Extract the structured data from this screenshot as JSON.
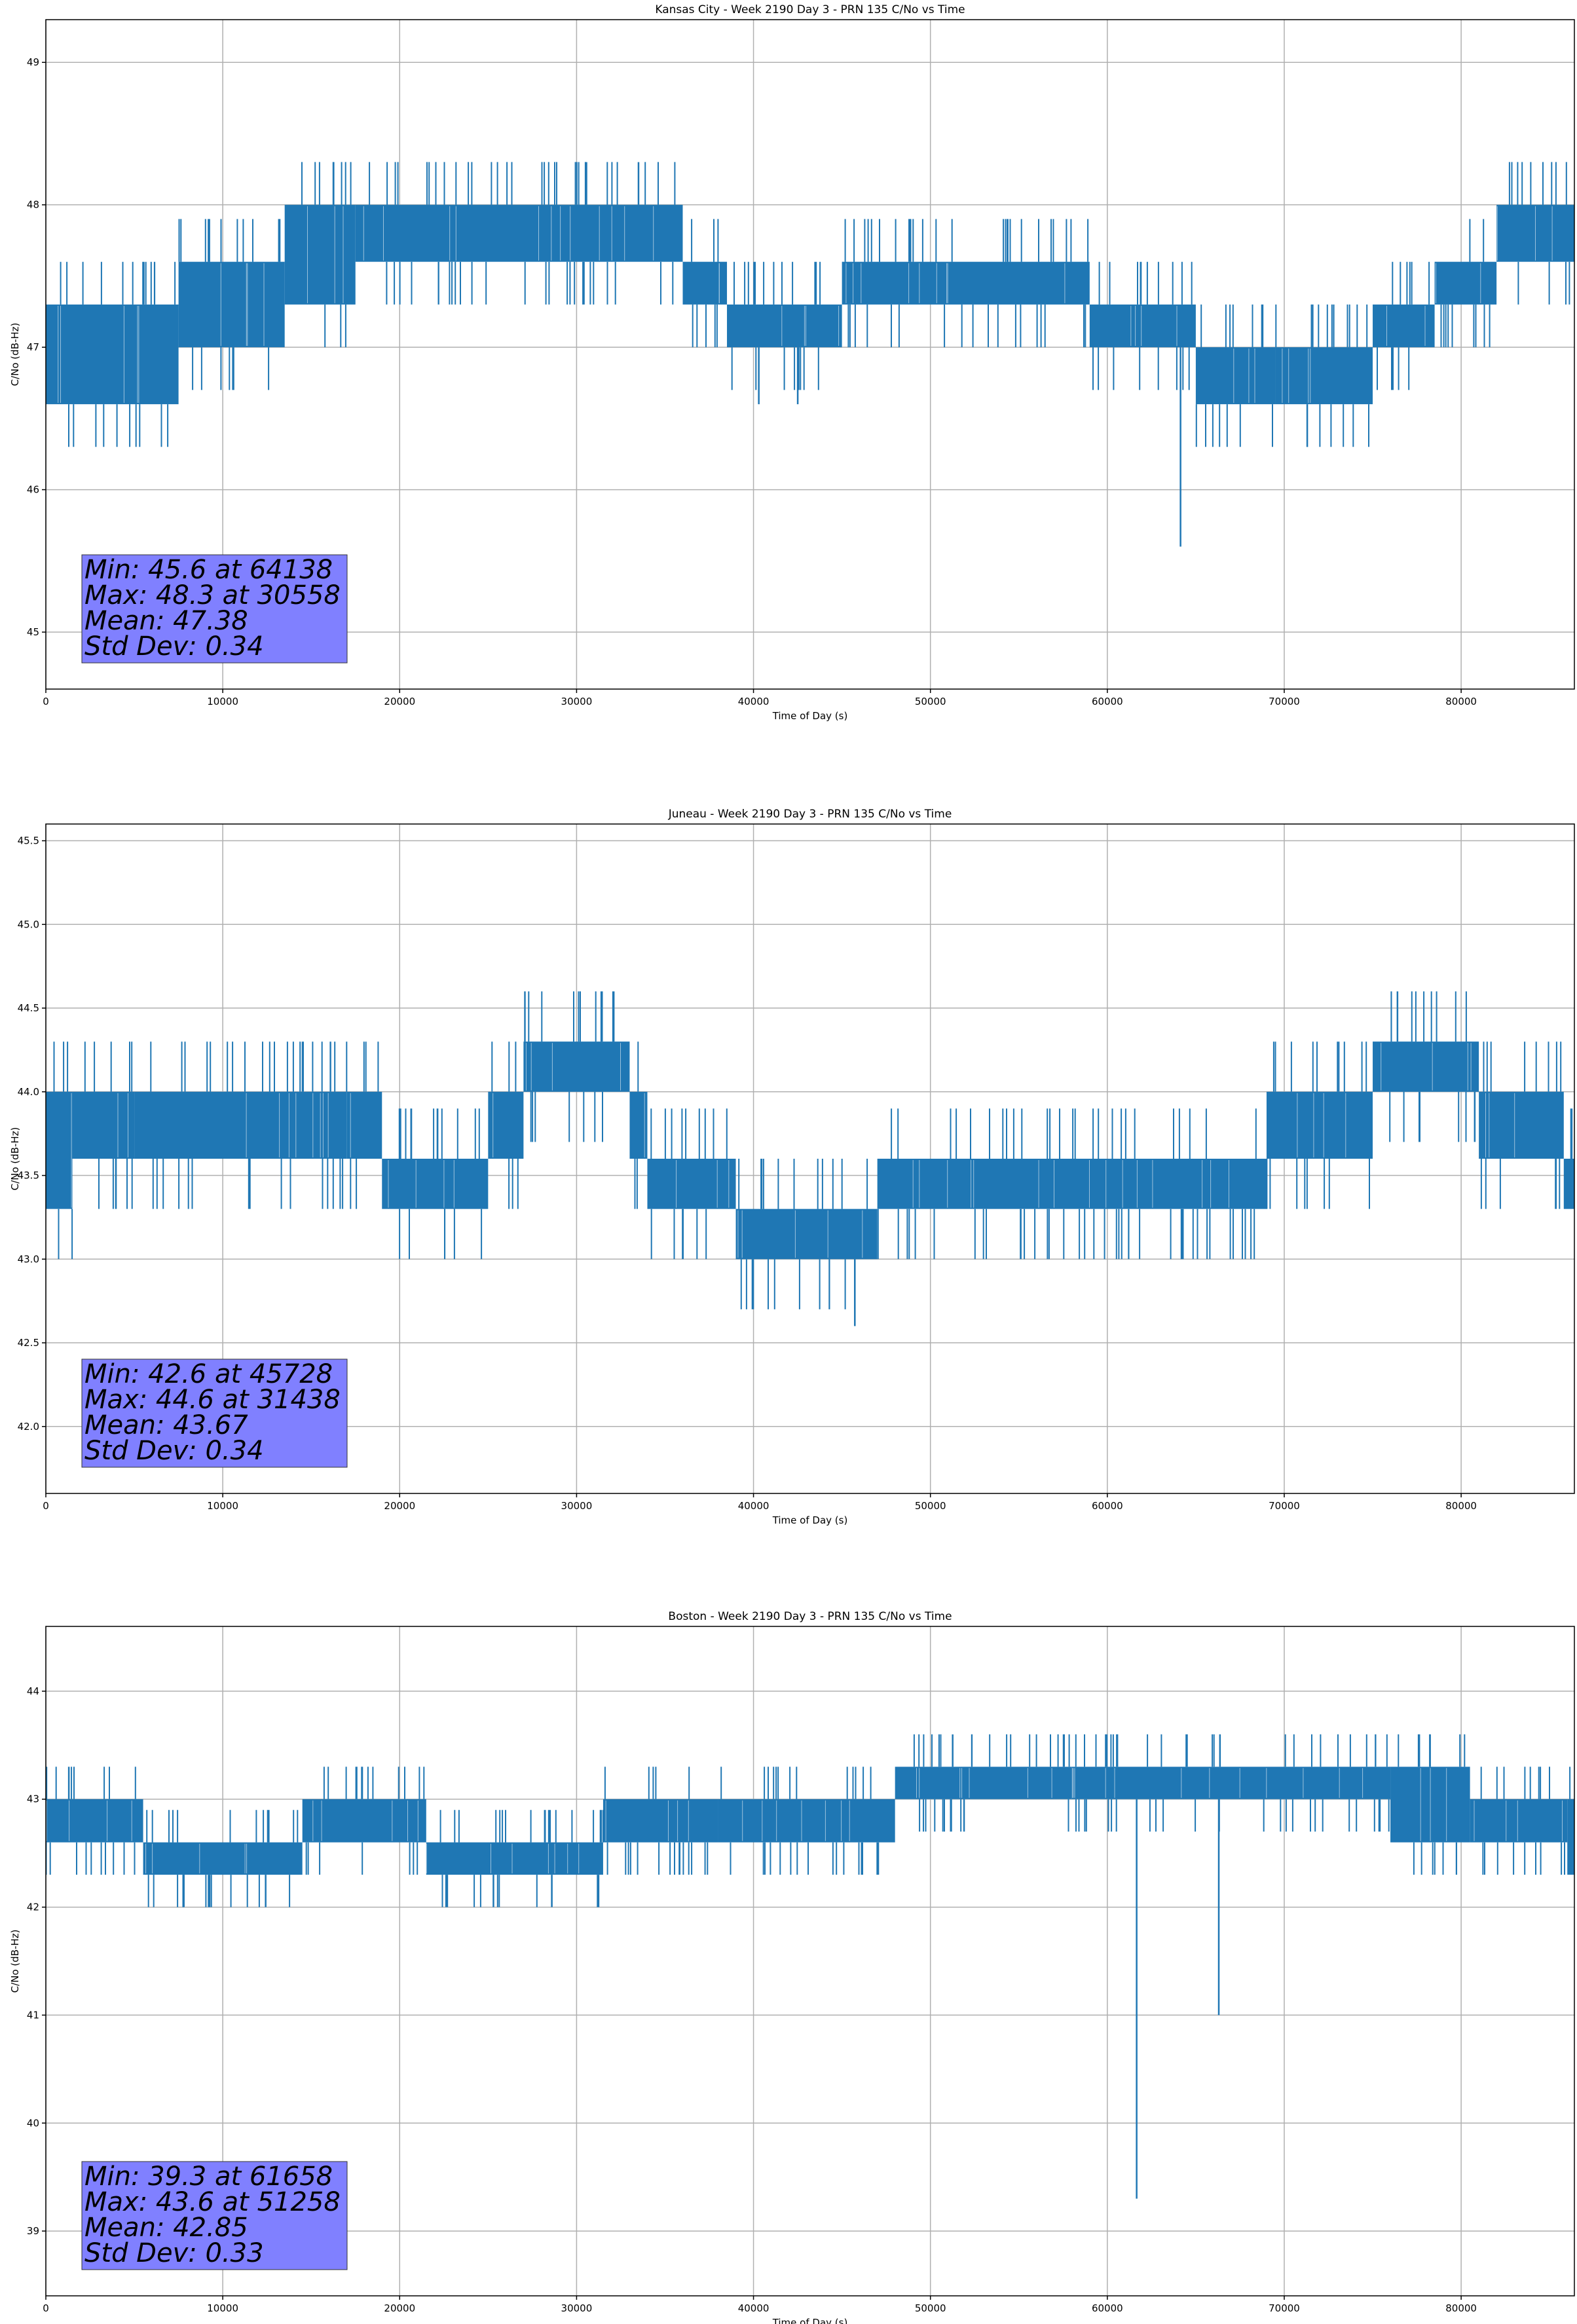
{
  "chart_data": [
    {
      "type": "line",
      "title": "Kansas City - Week 2190 Day 3 - PRN 135 C/No vs Time",
      "xlabel": "Time of Day (s)",
      "ylabel": "C/No (dB-Hz)",
      "xlim": [
        0,
        86400
      ],
      "ylim": [
        44.6,
        49.3
      ],
      "xticks": [
        0,
        10000,
        20000,
        30000,
        40000,
        50000,
        60000,
        70000,
        80000
      ],
      "yticks": [
        45,
        46,
        47,
        48,
        49
      ],
      "ytick_decimals": 0,
      "grid": true,
      "color": "#1f77b4",
      "stats_lines": [
        "Min: 45.6 at 64138",
        "Max: 48.3 at 30558",
        "Mean: 47.38",
        "Std Dev: 0.34"
      ],
      "bands": [
        {
          "x0": 0,
          "x1": 7500,
          "lo": 46.6,
          "hi": 47.3
        },
        {
          "x0": 7500,
          "x1": 13500,
          "lo": 47.0,
          "hi": 47.6
        },
        {
          "x0": 13500,
          "x1": 17500,
          "lo": 47.3,
          "hi": 48.0
        },
        {
          "x0": 17500,
          "x1": 36000,
          "lo": 47.6,
          "hi": 48.0
        },
        {
          "x0": 36000,
          "x1": 38500,
          "lo": 47.3,
          "hi": 47.6
        },
        {
          "x0": 38500,
          "x1": 45000,
          "lo": 47.0,
          "hi": 47.3
        },
        {
          "x0": 45000,
          "x1": 59000,
          "lo": 47.3,
          "hi": 47.6
        },
        {
          "x0": 59000,
          "x1": 65000,
          "lo": 47.0,
          "hi": 47.3
        },
        {
          "x0": 65000,
          "x1": 69500,
          "lo": 46.6,
          "hi": 47.0
        },
        {
          "x0": 69500,
          "x1": 75000,
          "lo": 46.6,
          "hi": 47.0
        },
        {
          "x0": 75000,
          "x1": 78500,
          "lo": 47.0,
          "hi": 47.3
        },
        {
          "x0": 78500,
          "x1": 82000,
          "lo": 47.3,
          "hi": 47.6
        },
        {
          "x0": 82000,
          "x1": 86400,
          "lo": 47.6,
          "hi": 48.0
        }
      ],
      "spikes": [
        [
          30558,
          48.3
        ],
        [
          33500,
          48.3
        ],
        [
          48800,
          47.9
        ],
        [
          64138,
          45.6
        ],
        [
          71300,
          46.3
        ],
        [
          40300,
          46.6
        ],
        [
          42500,
          46.6
        ],
        [
          2100,
          46.6
        ]
      ]
    },
    {
      "type": "line",
      "title": "Juneau - Week 2190 Day 3 - PRN 135 C/No vs Time",
      "xlabel": "Time of Day (s)",
      "ylabel": "C/No (dB-Hz)",
      "xlim": [
        0,
        86400
      ],
      "ylim": [
        41.6,
        45.6
      ],
      "xticks": [
        0,
        10000,
        20000,
        30000,
        40000,
        50000,
        60000,
        70000,
        80000
      ],
      "yticks": [
        42.0,
        42.5,
        43.0,
        43.5,
        44.0,
        44.5,
        45.0,
        45.5
      ],
      "ytick_decimals": 1,
      "grid": true,
      "color": "#1f77b4",
      "stats_lines": [
        "Min: 42.6 at 45728",
        "Max: 44.6 at 31438",
        "Mean: 43.67",
        "Std Dev: 0.34"
      ],
      "bands": [
        {
          "x0": 0,
          "x1": 1500,
          "lo": 43.3,
          "hi": 44.0
        },
        {
          "x0": 1500,
          "x1": 5000,
          "lo": 43.6,
          "hi": 44.0
        },
        {
          "x0": 5000,
          "x1": 17000,
          "lo": 43.6,
          "hi": 44.0
        },
        {
          "x0": 17000,
          "x1": 19000,
          "lo": 43.6,
          "hi": 44.0
        },
        {
          "x0": 19000,
          "x1": 25000,
          "lo": 43.3,
          "hi": 43.6
        },
        {
          "x0": 25000,
          "x1": 27000,
          "lo": 43.6,
          "hi": 44.0
        },
        {
          "x0": 27000,
          "x1": 33000,
          "lo": 44.0,
          "hi": 44.3
        },
        {
          "x0": 33000,
          "x1": 34000,
          "lo": 43.6,
          "hi": 44.0
        },
        {
          "x0": 34000,
          "x1": 39000,
          "lo": 43.3,
          "hi": 43.6
        },
        {
          "x0": 39000,
          "x1": 47000,
          "lo": 43.0,
          "hi": 43.3
        },
        {
          "x0": 47000,
          "x1": 69000,
          "lo": 43.3,
          "hi": 43.6
        },
        {
          "x0": 69000,
          "x1": 75000,
          "lo": 43.6,
          "hi": 44.0
        },
        {
          "x0": 75000,
          "x1": 81000,
          "lo": 44.0,
          "hi": 44.3
        },
        {
          "x0": 81000,
          "x1": 85800,
          "lo": 43.6,
          "hi": 44.0
        },
        {
          "x0": 85800,
          "x1": 86400,
          "lo": 43.3,
          "hi": 43.6
        }
      ],
      "spikes": [
        [
          31438,
          44.6
        ],
        [
          76400,
          44.6
        ],
        [
          45728,
          42.6
        ]
      ]
    },
    {
      "type": "line",
      "title": "Boston - Week 2190 Day 3 - PRN 135 C/No vs Time",
      "xlabel": "Time of Day (s)",
      "ylabel": "C/No (dB-Hz)",
      "xlim": [
        0,
        86400
      ],
      "ylim": [
        38.4,
        44.6
      ],
      "xticks": [
        0,
        10000,
        20000,
        30000,
        40000,
        50000,
        60000,
        70000,
        80000
      ],
      "yticks": [
        39,
        40,
        41,
        42,
        43,
        44
      ],
      "ytick_decimals": 0,
      "grid": true,
      "color": "#1f77b4",
      "stats_lines": [
        "Min: 39.3 at 61658",
        "Max: 43.6 at 51258",
        "Mean: 42.85",
        "Std Dev: 0.33"
      ],
      "bands": [
        {
          "x0": 0,
          "x1": 5500,
          "lo": 42.6,
          "hi": 43.0
        },
        {
          "x0": 5500,
          "x1": 14500,
          "lo": 42.3,
          "hi": 42.6
        },
        {
          "x0": 14500,
          "x1": 21500,
          "lo": 42.6,
          "hi": 43.0
        },
        {
          "x0": 21500,
          "x1": 31500,
          "lo": 42.3,
          "hi": 42.6
        },
        {
          "x0": 31500,
          "x1": 38000,
          "lo": 42.6,
          "hi": 43.0
        },
        {
          "x0": 38000,
          "x1": 48000,
          "lo": 42.6,
          "hi": 43.0
        },
        {
          "x0": 48000,
          "x1": 58000,
          "lo": 43.0,
          "hi": 43.3
        },
        {
          "x0": 58000,
          "x1": 76000,
          "lo": 43.0,
          "hi": 43.3
        },
        {
          "x0": 76000,
          "x1": 80500,
          "lo": 42.6,
          "hi": 43.3
        },
        {
          "x0": 80500,
          "x1": 86000,
          "lo": 42.6,
          "hi": 43.0
        },
        {
          "x0": 86000,
          "x1": 86400,
          "lo": 42.3,
          "hi": 43.0
        }
      ],
      "spikes": [
        [
          61658,
          39.3
        ],
        [
          66300,
          41.0
        ],
        [
          1300,
          43.3
        ],
        [
          51258,
          43.6
        ],
        [
          7800,
          42.0
        ],
        [
          9200,
          42.0
        ],
        [
          25300,
          42.0
        ],
        [
          28600,
          42.0
        ]
      ]
    }
  ]
}
